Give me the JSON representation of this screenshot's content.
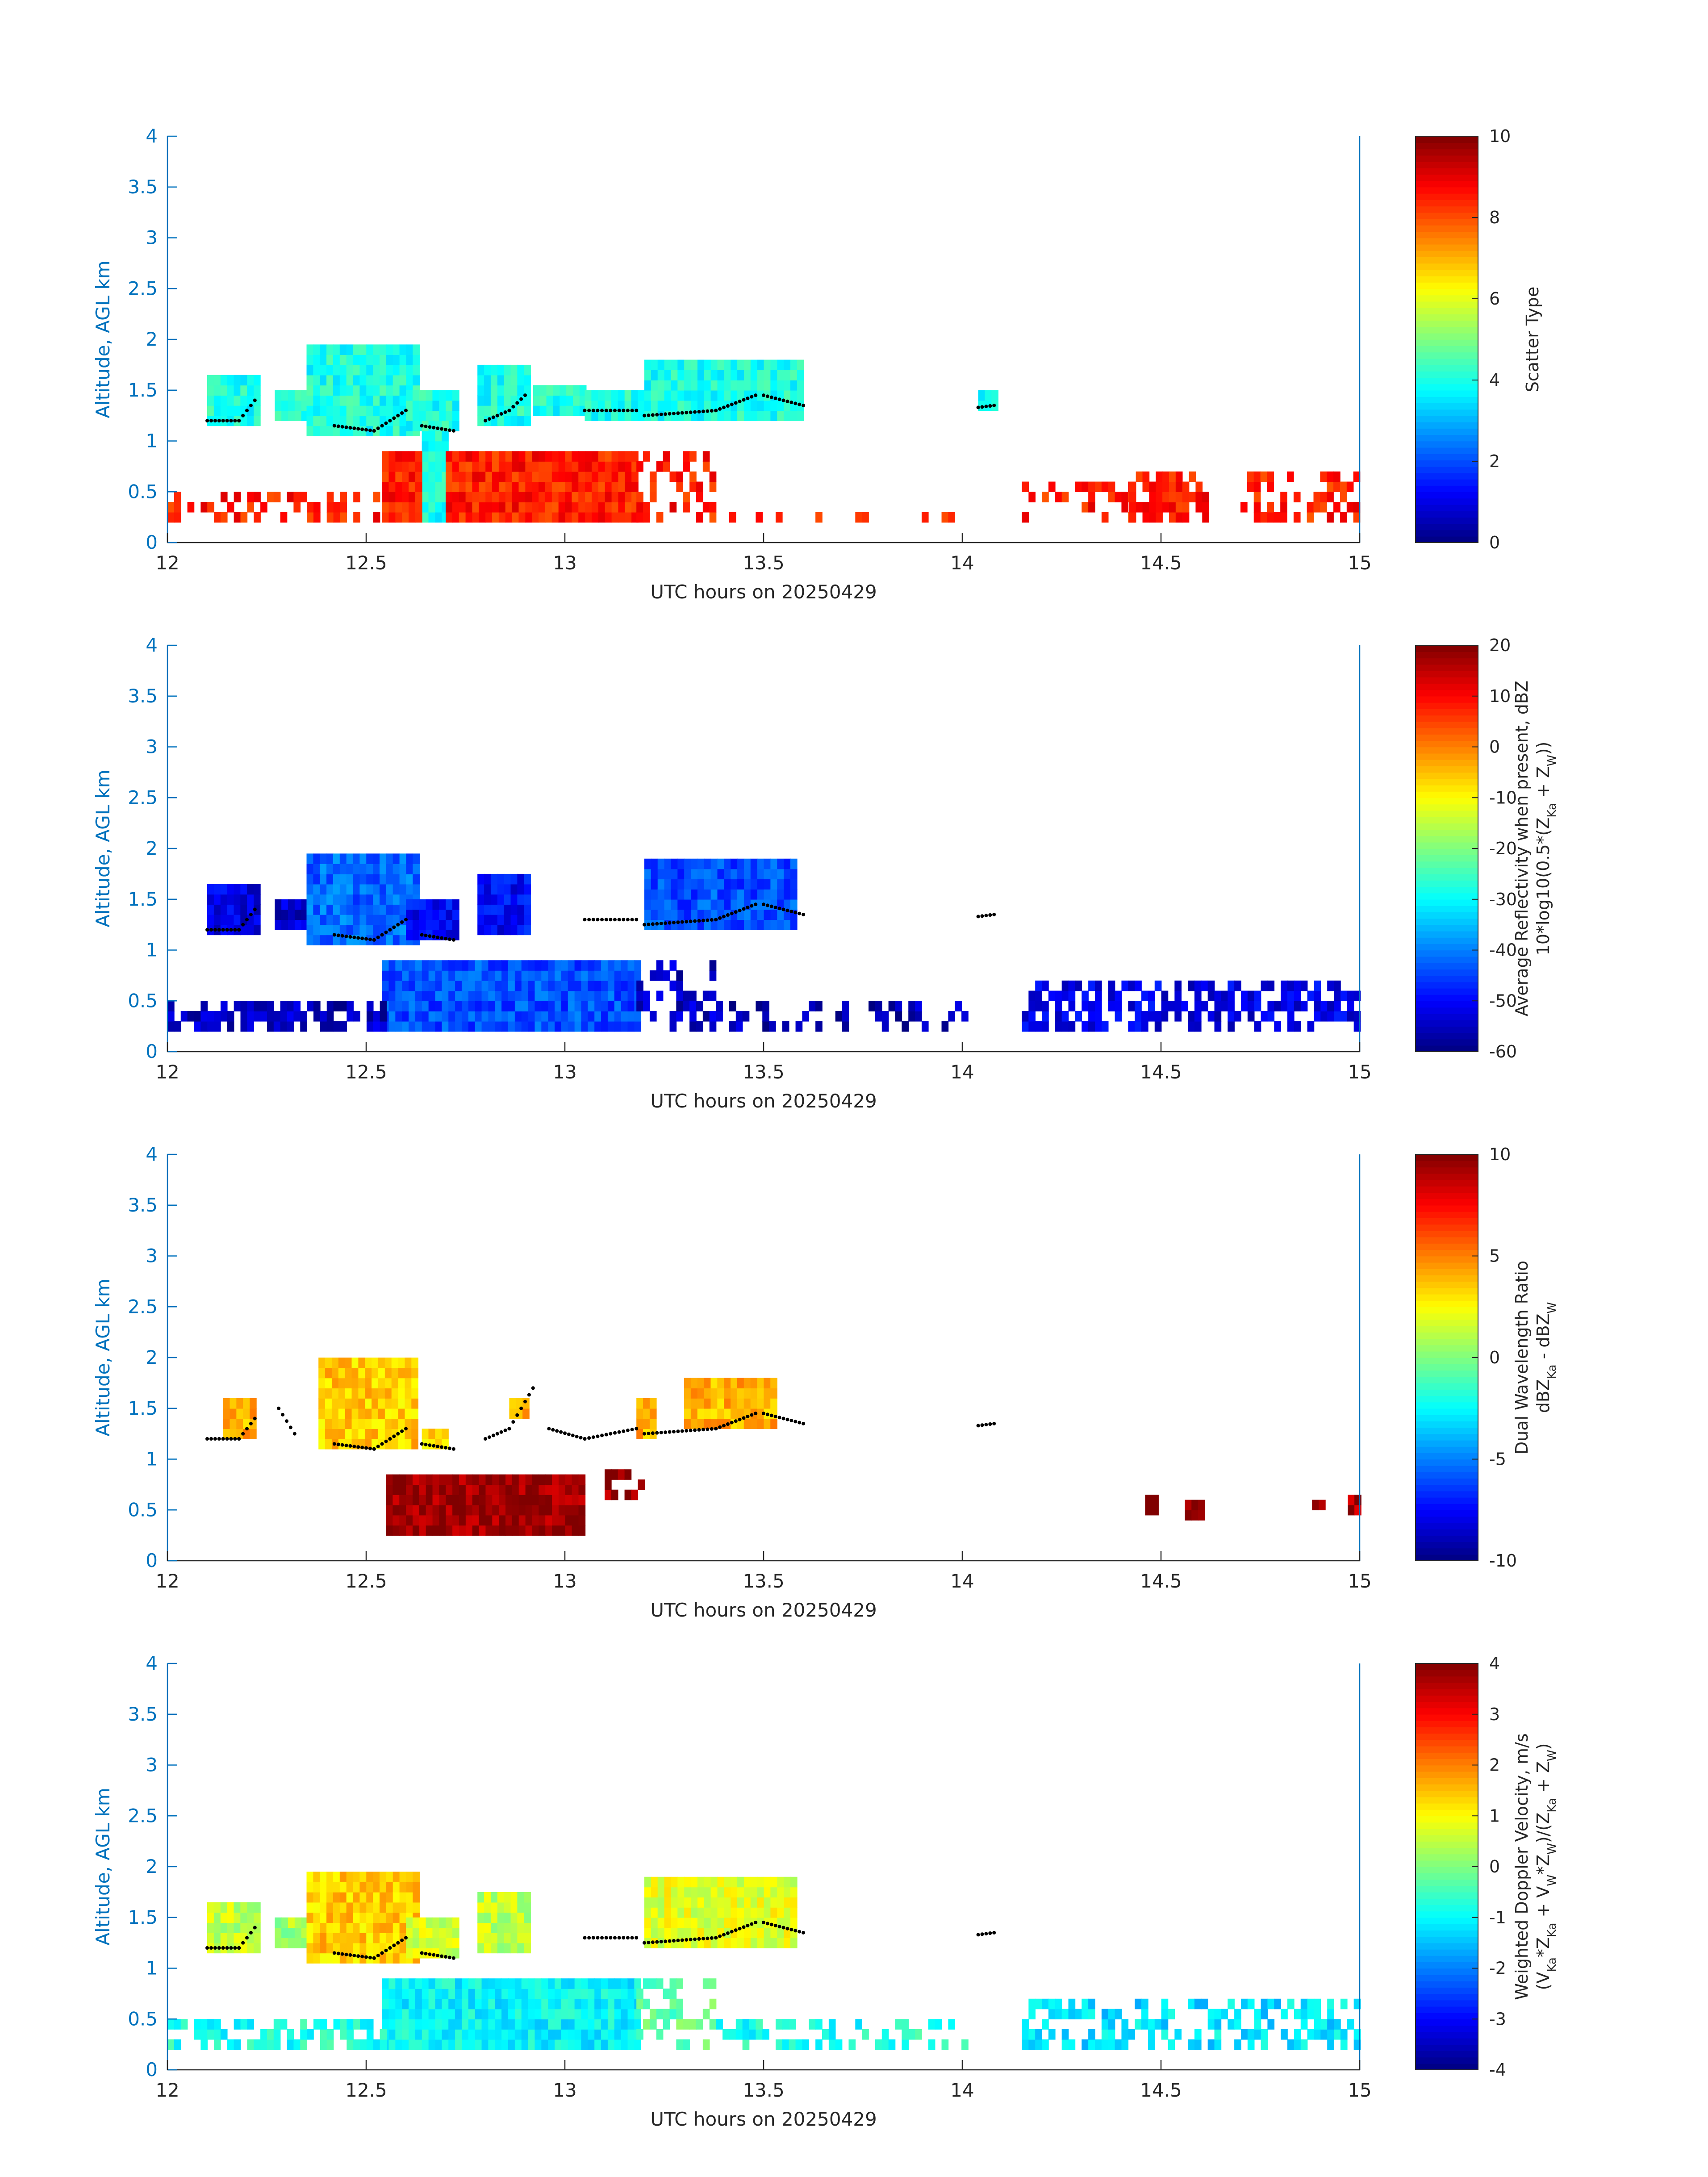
{
  "colors": {
    "axis": "#0072BD",
    "dots": "#000000",
    "background": "#ffffff",
    "colormap": "jet"
  },
  "chart_data": [
    {
      "type": "heatmap",
      "title": "",
      "xlabel": "UTC hours on 20250429",
      "ylabel": "Altitude, AGL km",
      "xlim": [
        12,
        15
      ],
      "ylim": [
        0,
        4
      ],
      "xticks": [
        "12",
        "12.5",
        "13",
        "13.5",
        "14",
        "14.5",
        "15"
      ],
      "yticks": [
        "0",
        "0.5",
        "1",
        "1.5",
        "2",
        "2.5",
        "3",
        "3.5",
        "4"
      ],
      "colorbar": {
        "label_lines": [
          "Scatter Type"
        ],
        "range": [
          0,
          10
        ],
        "ticks": [
          "0",
          "2",
          "4",
          "6",
          "8",
          "10"
        ]
      },
      "cell_size": [
        0.0167,
        0.1
      ],
      "regions": [
        {
          "x": [
            12.1,
            12.22
          ],
          "y": [
            1.15,
            1.65
          ],
          "value": 4
        },
        {
          "x": [
            12.27,
            12.35
          ],
          "y": [
            1.2,
            1.5
          ],
          "value": 4
        },
        {
          "x": [
            12.35,
            12.62
          ],
          "y": [
            1.05,
            1.9
          ],
          "value": 4
        },
        {
          "x": [
            12.6,
            12.72
          ],
          "y": [
            1.1,
            1.45
          ],
          "value": 4
        },
        {
          "x": [
            12.78,
            12.9
          ],
          "y": [
            1.15,
            1.75
          ],
          "value": 4
        },
        {
          "x": [
            12.92,
            13.05
          ],
          "y": [
            1.25,
            1.55
          ],
          "value": 4
        },
        {
          "x": [
            13.05,
            13.2
          ],
          "y": [
            1.2,
            1.45
          ],
          "value": 4
        },
        {
          "x": [
            13.2,
            13.6
          ],
          "y": [
            1.2,
            1.75
          ],
          "value": 4
        },
        {
          "x": [
            14.04,
            14.08
          ],
          "y": [
            1.3,
            1.5
          ],
          "value": 4
        },
        {
          "x": [
            12.64,
            12.7
          ],
          "y": [
            0.2,
            1.15
          ],
          "value": 4
        },
        {
          "x": [
            12.54,
            12.64
          ],
          "y": [
            0.2,
            0.85
          ],
          "value": 8.5
        },
        {
          "x": [
            12.7,
            13.18
          ],
          "y": [
            0.2,
            0.85
          ],
          "value": 8.5
        },
        {
          "x": [
            13.18,
            13.38
          ],
          "y": [
            0.2,
            0.9
          ],
          "value": 8.5,
          "density": 0.35
        },
        {
          "x": [
            12.0,
            12.54
          ],
          "y": [
            0.2,
            0.45
          ],
          "value": 8.5,
          "density": 0.45
        },
        {
          "x": [
            13.38,
            14.0
          ],
          "y": [
            0.2,
            0.3
          ],
          "value": 8.5,
          "density": 0.45
        },
        {
          "x": [
            14.15,
            14.42
          ],
          "y": [
            0.2,
            0.55
          ],
          "value": 8.5,
          "density": 0.3
        },
        {
          "x": [
            14.42,
            14.62
          ],
          "y": [
            0.2,
            0.65
          ],
          "value": 8.5,
          "density": 0.7
        },
        {
          "x": [
            14.7,
            15.0
          ],
          "y": [
            0.2,
            0.65
          ],
          "value": 8.5,
          "density": 0.5
        }
      ],
      "dot_lines": [
        [
          [
            12.1,
            1.2
          ],
          [
            12.18,
            1.2
          ],
          [
            12.22,
            1.4
          ]
        ],
        [
          [
            12.42,
            1.15
          ],
          [
            12.52,
            1.1
          ],
          [
            12.6,
            1.3
          ]
        ],
        [
          [
            12.64,
            1.15
          ],
          [
            12.72,
            1.1
          ]
        ],
        [
          [
            12.8,
            1.2
          ],
          [
            12.86,
            1.3
          ],
          [
            12.9,
            1.45
          ]
        ],
        [
          [
            13.05,
            1.3
          ],
          [
            13.18,
            1.3
          ]
        ],
        [
          [
            13.2,
            1.25
          ],
          [
            13.38,
            1.3
          ],
          [
            13.48,
            1.45
          ]
        ],
        [
          [
            13.5,
            1.45
          ],
          [
            13.6,
            1.35
          ]
        ],
        [
          [
            14.04,
            1.33
          ],
          [
            14.08,
            1.35
          ]
        ]
      ]
    },
    {
      "type": "heatmap",
      "title": "",
      "xlabel": "UTC hours on 20250429",
      "ylabel": "Altitude, AGL km",
      "xlim": [
        12,
        15
      ],
      "ylim": [
        0,
        4
      ],
      "xticks": [
        "12",
        "12.5",
        "13",
        "13.5",
        "14",
        "14.5",
        "15"
      ],
      "yticks": [
        "0",
        "0.5",
        "1",
        "1.5",
        "2",
        "2.5",
        "3",
        "3.5",
        "4"
      ],
      "colorbar": {
        "label_lines": [
          "Average Reflectivity when present, dBZ",
          "10*log10(0.5*(Z_Ka + Z_W))"
        ],
        "range": [
          -60,
          20
        ],
        "ticks": [
          "-60",
          "-50",
          "-40",
          "-30",
          "-20",
          "-10",
          "0",
          "10",
          "20"
        ]
      },
      "cell_size": [
        0.0167,
        0.1
      ],
      "regions": [
        {
          "x": [
            12.1,
            12.22
          ],
          "y": [
            1.15,
            1.65
          ],
          "value": -52
        },
        {
          "x": [
            12.27,
            12.35
          ],
          "y": [
            1.2,
            1.5
          ],
          "value": -54
        },
        {
          "x": [
            12.35,
            12.62
          ],
          "y": [
            1.05,
            1.95
          ],
          "value": -42
        },
        {
          "x": [
            12.6,
            12.72
          ],
          "y": [
            1.1,
            1.45
          ],
          "value": -50
        },
        {
          "x": [
            12.78,
            12.9
          ],
          "y": [
            1.15,
            1.75
          ],
          "value": -50
        },
        {
          "x": [
            13.2,
            13.58
          ],
          "y": [
            1.2,
            1.85
          ],
          "value": -44
        },
        {
          "x": [
            12.54,
            13.18
          ],
          "y": [
            0.2,
            0.9
          ],
          "value": -44
        },
        {
          "x": [
            13.18,
            13.38
          ],
          "y": [
            0.2,
            0.9
          ],
          "value": -55,
          "density": 0.35
        },
        {
          "x": [
            12.0,
            12.54
          ],
          "y": [
            0.2,
            0.45
          ],
          "value": -55,
          "density": 0.6
        },
        {
          "x": [
            13.38,
            14.0
          ],
          "y": [
            0.2,
            0.45
          ],
          "value": -56,
          "density": 0.35
        },
        {
          "x": [
            14.15,
            15.0
          ],
          "y": [
            0.2,
            0.65
          ],
          "value": -52,
          "density": 0.55
        }
      ],
      "dot_lines": [
        [
          [
            12.1,
            1.2
          ],
          [
            12.18,
            1.2
          ],
          [
            12.22,
            1.4
          ]
        ],
        [
          [
            12.42,
            1.15
          ],
          [
            12.52,
            1.1
          ],
          [
            12.6,
            1.3
          ]
        ],
        [
          [
            12.64,
            1.15
          ],
          [
            12.72,
            1.1
          ]
        ],
        [
          [
            13.05,
            1.3
          ],
          [
            13.18,
            1.3
          ]
        ],
        [
          [
            13.2,
            1.25
          ],
          [
            13.38,
            1.3
          ],
          [
            13.48,
            1.45
          ]
        ],
        [
          [
            13.5,
            1.45
          ],
          [
            13.6,
            1.35
          ]
        ],
        [
          [
            14.04,
            1.33
          ],
          [
            14.08,
            1.35
          ]
        ]
      ]
    },
    {
      "type": "heatmap",
      "title": "",
      "xlabel": "UTC hours on 20250429",
      "ylabel": "Altitude, AGL km",
      "xlim": [
        12,
        15
      ],
      "ylim": [
        0,
        4
      ],
      "xticks": [
        "12",
        "12.5",
        "13",
        "13.5",
        "14",
        "14.5",
        "15"
      ],
      "yticks": [
        "0",
        "0.5",
        "1",
        "1.5",
        "2",
        "2.5",
        "3",
        "3.5",
        "4"
      ],
      "colorbar": {
        "label_lines": [
          "Dual Wavelength Ratio",
          "dBZ_Ka - dBZ_W"
        ],
        "range": [
          -10,
          10
        ],
        "ticks": [
          "-10",
          "-5",
          "0",
          "5",
          "10"
        ]
      },
      "cell_size": [
        0.0167,
        0.1
      ],
      "regions": [
        {
          "x": [
            12.14,
            12.22
          ],
          "y": [
            1.2,
            1.6
          ],
          "value": 4
        },
        {
          "x": [
            12.38,
            12.62
          ],
          "y": [
            1.1,
            1.95
          ],
          "value": 3.5
        },
        {
          "x": [
            12.64,
            12.7
          ],
          "y": [
            1.1,
            1.25
          ],
          "value": 3
        },
        {
          "x": [
            12.86,
            12.9
          ],
          "y": [
            1.4,
            1.6
          ],
          "value": 4
        },
        {
          "x": [
            13.18,
            13.22
          ],
          "y": [
            1.2,
            1.6
          ],
          "value": 4
        },
        {
          "x": [
            13.3,
            13.52
          ],
          "y": [
            1.3,
            1.75
          ],
          "value": 4
        },
        {
          "x": [
            12.55,
            13.05
          ],
          "y": [
            0.25,
            0.85
          ],
          "value": 9.5
        },
        {
          "x": [
            13.1,
            13.2
          ],
          "y": [
            0.6,
            0.9
          ],
          "value": 9.5,
          "density": 0.5
        },
        {
          "x": [
            14.46,
            14.48
          ],
          "y": [
            0.45,
            0.65
          ],
          "value": 9.5
        },
        {
          "x": [
            14.56,
            14.6
          ],
          "y": [
            0.4,
            0.6
          ],
          "value": 9.5
        },
        {
          "x": [
            14.88,
            14.9
          ],
          "y": [
            0.5,
            0.6
          ],
          "value": 9.5
        },
        {
          "x": [
            14.97,
            15.0
          ],
          "y": [
            0.45,
            0.6
          ],
          "value": 9
        }
      ],
      "dot_lines": [
        [
          [
            12.1,
            1.2
          ],
          [
            12.18,
            1.2
          ],
          [
            12.22,
            1.4
          ]
        ],
        [
          [
            12.28,
            1.5
          ],
          [
            12.32,
            1.25
          ]
        ],
        [
          [
            12.42,
            1.15
          ],
          [
            12.52,
            1.1
          ],
          [
            12.6,
            1.3
          ]
        ],
        [
          [
            12.64,
            1.15
          ],
          [
            12.72,
            1.1
          ]
        ],
        [
          [
            12.8,
            1.2
          ],
          [
            12.86,
            1.3
          ],
          [
            12.92,
            1.7
          ]
        ],
        [
          [
            12.96,
            1.3
          ],
          [
            13.05,
            1.2
          ],
          [
            13.18,
            1.3
          ]
        ],
        [
          [
            13.2,
            1.25
          ],
          [
            13.38,
            1.3
          ],
          [
            13.48,
            1.45
          ]
        ],
        [
          [
            13.5,
            1.45
          ],
          [
            13.6,
            1.35
          ]
        ],
        [
          [
            14.04,
            1.33
          ],
          [
            14.08,
            1.35
          ]
        ]
      ]
    },
    {
      "type": "heatmap",
      "title": "",
      "xlabel": "UTC hours on 20250429",
      "ylabel": "Altitude, AGL km",
      "xlim": [
        12,
        15
      ],
      "ylim": [
        0,
        4
      ],
      "xticks": [
        "12",
        "12.5",
        "13",
        "13.5",
        "14",
        "14.5",
        "15"
      ],
      "yticks": [
        "0",
        "0.5",
        "1",
        "1.5",
        "2",
        "2.5",
        "3",
        "3.5",
        "4"
      ],
      "colorbar": {
        "label_lines": [
          "Weighted Doppler Velocity, m/s",
          "(V_Ka*Z_Ka + V_W*Z_W)/(Z_Ka + Z_W)"
        ],
        "range": [
          -4,
          4
        ],
        "ticks": [
          "-4",
          "-3",
          "-2",
          "-1",
          "0",
          "1",
          "2",
          "3",
          "4"
        ]
      },
      "cell_size": [
        0.0167,
        0.1
      ],
      "regions": [
        {
          "x": [
            12.1,
            12.22
          ],
          "y": [
            1.15,
            1.65
          ],
          "value": 0.5
        },
        {
          "x": [
            12.27,
            12.35
          ],
          "y": [
            1.2,
            1.5
          ],
          "value": 0.3
        },
        {
          "x": [
            12.35,
            12.62
          ],
          "y": [
            1.05,
            1.95
          ],
          "value": 1.4
        },
        {
          "x": [
            12.6,
            12.72
          ],
          "y": [
            1.1,
            1.45
          ],
          "value": 0.6
        },
        {
          "x": [
            12.78,
            12.9
          ],
          "y": [
            1.15,
            1.75
          ],
          "value": 0.5
        },
        {
          "x": [
            13.2,
            13.58
          ],
          "y": [
            1.2,
            1.85
          ],
          "value": 0.8
        },
        {
          "x": [
            12.54,
            13.18
          ],
          "y": [
            0.2,
            0.9
          ],
          "value": -1.0
        },
        {
          "x": [
            13.18,
            13.38
          ],
          "y": [
            0.2,
            0.9
          ],
          "value": -0.2,
          "density": 0.4
        },
        {
          "x": [
            12.0,
            12.54
          ],
          "y": [
            0.2,
            0.45
          ],
          "value": -0.8,
          "density": 0.6
        },
        {
          "x": [
            13.38,
            14.0
          ],
          "y": [
            0.2,
            0.45
          ],
          "value": -0.8,
          "density": 0.4
        },
        {
          "x": [
            14.15,
            15.0
          ],
          "y": [
            0.2,
            0.65
          ],
          "value": -1.2,
          "density": 0.55
        }
      ],
      "dot_lines": [
        [
          [
            12.1,
            1.2
          ],
          [
            12.18,
            1.2
          ],
          [
            12.22,
            1.4
          ]
        ],
        [
          [
            12.42,
            1.15
          ],
          [
            12.52,
            1.1
          ],
          [
            12.6,
            1.3
          ]
        ],
        [
          [
            12.64,
            1.15
          ],
          [
            12.72,
            1.1
          ]
        ],
        [
          [
            13.05,
            1.3
          ],
          [
            13.18,
            1.3
          ]
        ],
        [
          [
            13.2,
            1.25
          ],
          [
            13.38,
            1.3
          ],
          [
            13.48,
            1.45
          ]
        ],
        [
          [
            13.5,
            1.45
          ],
          [
            13.6,
            1.35
          ]
        ],
        [
          [
            14.04,
            1.33
          ],
          [
            14.08,
            1.35
          ]
        ]
      ]
    }
  ]
}
